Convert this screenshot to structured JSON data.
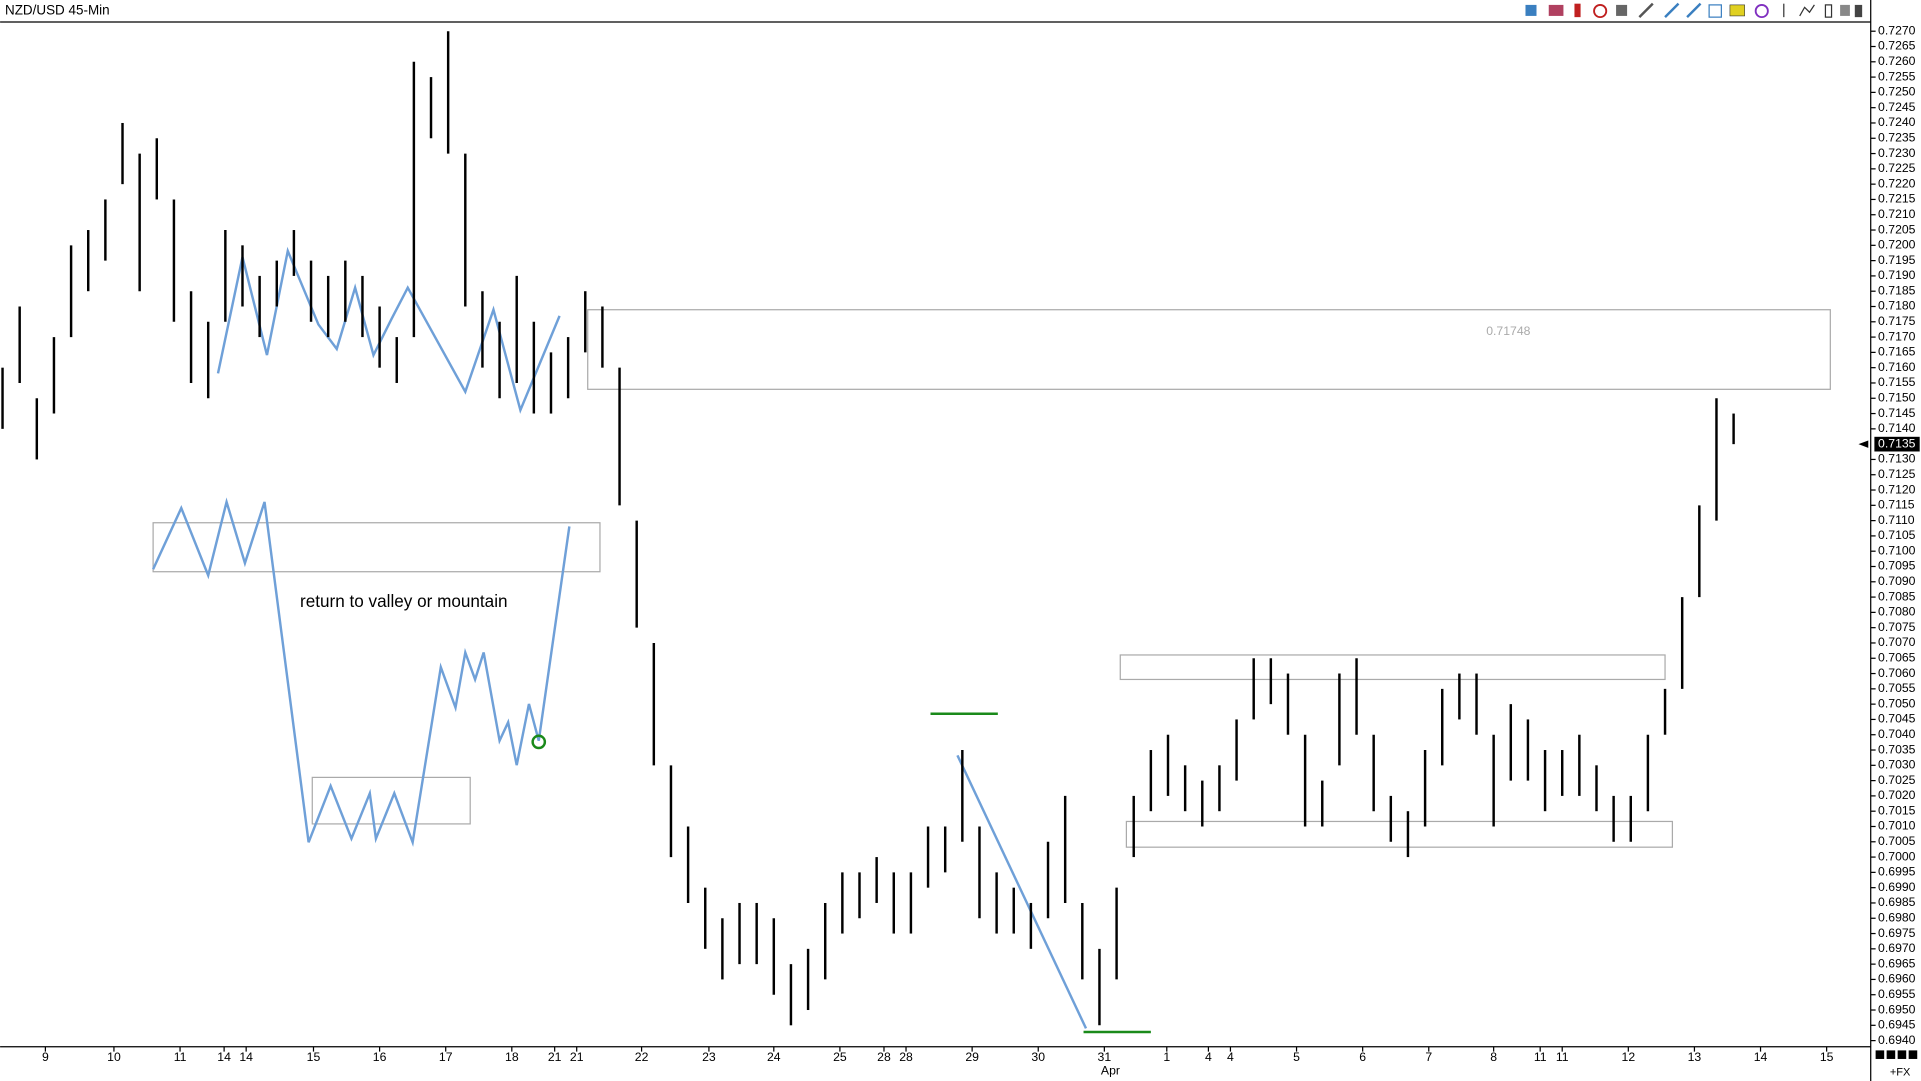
{
  "chart_data": {
    "type": "ohlc",
    "title": "NZD/USD 45-Min",
    "color": "#000000",
    "series": [
      {
        "high": [
          0.716,
          0.718,
          0.715,
          0.717,
          0.72,
          0.7205,
          0.7215,
          0.724,
          0.723,
          0.7235,
          0.7215,
          0.7185,
          0.7175,
          0.7205,
          0.72,
          0.719,
          0.7195,
          0.7205,
          0.7195,
          0.719,
          0.7195,
          0.719,
          0.718,
          0.717,
          0.726,
          0.7255,
          0.727,
          0.723,
          0.7185,
          0.7175,
          0.719,
          0.7175,
          0.7165,
          0.717,
          0.7185,
          0.718,
          0.716,
          0.711,
          0.707,
          0.703,
          0.701,
          0.699,
          0.698,
          0.6985,
          0.6985,
          0.698,
          0.6965,
          0.697,
          0.6985,
          0.6995,
          0.6995,
          0.7,
          0.6995,
          0.6995,
          0.701,
          0.701,
          0.7035,
          0.701,
          0.6995,
          0.699,
          0.6985,
          0.7005,
          0.702,
          0.6985,
          0.697,
          0.699,
          0.702,
          0.7035,
          0.704,
          0.703,
          0.7025,
          0.703,
          0.7045,
          0.7065,
          0.7065,
          0.706,
          0.704,
          0.7025,
          0.706,
          0.7065,
          0.704,
          0.702,
          0.7015,
          0.7035,
          0.7055,
          0.706,
          0.706,
          0.704,
          0.705,
          0.7045,
          0.7035,
          0.7035,
          0.704,
          0.703,
          0.702,
          0.702,
          0.704,
          0.7055,
          0.7085,
          0.7115,
          0.715,
          0.7145
        ],
        "low": [
          0.714,
          0.7155,
          0.713,
          0.7145,
          0.717,
          0.7185,
          0.7195,
          0.722,
          0.7185,
          0.7215,
          0.7175,
          0.7155,
          0.715,
          0.7175,
          0.718,
          0.717,
          0.718,
          0.719,
          0.7175,
          0.717,
          0.7175,
          0.717,
          0.716,
          0.7155,
          0.717,
          0.7235,
          0.723,
          0.718,
          0.716,
          0.715,
          0.7155,
          0.7145,
          0.7145,
          0.715,
          0.7165,
          0.716,
          0.7115,
          0.7075,
          0.703,
          0.7,
          0.6985,
          0.697,
          0.696,
          0.6965,
          0.6965,
          0.6955,
          0.6945,
          0.695,
          0.696,
          0.6975,
          0.698,
          0.6985,
          0.6975,
          0.6975,
          0.699,
          0.6995,
          0.7005,
          0.698,
          0.6975,
          0.6975,
          0.697,
          0.698,
          0.6985,
          0.696,
          0.6945,
          0.696,
          0.7,
          0.7015,
          0.702,
          0.7015,
          0.701,
          0.7015,
          0.7025,
          0.7045,
          0.705,
          0.704,
          0.701,
          0.701,
          0.703,
          0.704,
          0.7015,
          0.7005,
          0.7,
          0.701,
          0.703,
          0.7045,
          0.704,
          0.701,
          0.7025,
          0.7025,
          0.7015,
          0.702,
          0.702,
          0.7015,
          0.7005,
          0.7005,
          0.7015,
          0.704,
          0.7055,
          0.7085,
          0.711,
          0.7135
        ]
      }
    ],
    "categories": [
      "9",
      "10",
      "11",
      "14",
      "14",
      "15",
      "16",
      "17",
      "18",
      "21",
      "21",
      "22",
      "23",
      "24",
      "25",
      "28",
      "28",
      "29",
      "30",
      "31",
      "1",
      "4",
      "4",
      "5",
      "6",
      "7",
      "8",
      "11",
      "11",
      "12",
      "13",
      "14",
      "15"
    ],
    "month_label": "Apr",
    "ylim": [
      0.6938,
      0.7273
    ],
    "yticks": [
      {
        "value": 0.727,
        "label": "0.7270"
      },
      0.7265,
      {
        "value": 0.726,
        "label": "0.7260"
      },
      0.7255,
      {
        "value": 0.725,
        "label": "0.7250"
      },
      0.7245,
      {
        "value": 0.724,
        "label": "0.7240"
      },
      0.7235,
      {
        "value": 0.723,
        "label": "0.7230"
      },
      0.7225,
      {
        "value": 0.722,
        "label": "0.7220"
      },
      0.7215,
      {
        "value": 0.721,
        "label": "0.7210"
      },
      0.7205,
      {
        "value": 0.72,
        "label": "0.7200"
      },
      0.7195,
      {
        "value": 0.719,
        "label": "0.7190"
      },
      0.7185,
      {
        "value": 0.718,
        "label": "0.7180"
      },
      0.7175,
      {
        "value": 0.717,
        "label": "0.7170"
      },
      0.7165,
      {
        "value": 0.716,
        "label": "0.7160"
      },
      0.7155,
      {
        "value": 0.715,
        "label": "0.7150"
      },
      0.7145,
      {
        "value": 0.714,
        "label": "0.7140"
      },
      {
        "value": 0.713,
        "label": "0.7130"
      },
      0.7125,
      {
        "value": 0.712,
        "label": "0.7120"
      },
      0.7115,
      {
        "value": 0.711,
        "label": "0.7110"
      },
      0.7105,
      {
        "value": 0.71,
        "label": "0.7100"
      },
      0.7095,
      {
        "value": 0.709,
        "label": "0.7090"
      },
      0.7085,
      {
        "value": 0.708,
        "label": "0.7080"
      },
      0.7075,
      {
        "value": 0.707,
        "label": "0.7070"
      },
      0.7065,
      {
        "value": 0.706,
        "label": "0.7060"
      },
      0.7055,
      {
        "value": 0.705,
        "label": "0.7050"
      },
      0.7045,
      {
        "value": 0.704,
        "label": "0.7040"
      },
      0.7035,
      {
        "value": 0.703,
        "label": "0.7030"
      },
      0.7025,
      {
        "value": 0.702,
        "label": "0.7020"
      },
      0.7015,
      {
        "value": 0.701,
        "label": "0.7010"
      },
      0.7005,
      {
        "value": 0.7,
        "label": "0.7000"
      },
      0.6995,
      {
        "value": 0.699,
        "label": "0.6990"
      },
      0.6985,
      {
        "value": 0.698,
        "label": "0.6980"
      },
      0.6975,
      {
        "value": 0.697,
        "label": "0.6970"
      },
      0.6965,
      {
        "value": 0.696,
        "label": "0.6960"
      },
      0.6955,
      {
        "value": 0.695,
        "label": "0.6950"
      },
      0.6945,
      {
        "value": 0.694,
        "label": "0.6940"
      }
    ],
    "last_price": 0.7135,
    "annotations": [
      "return to valley or mountain",
      "0.71748"
    ],
    "footer": "+FX"
  }
}
